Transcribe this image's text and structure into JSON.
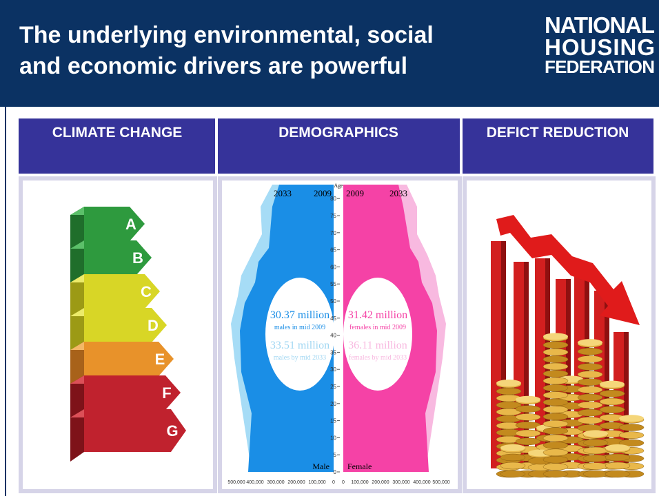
{
  "header": {
    "title": [
      "The underlying environmental, social",
      "and economic drivers are powerful"
    ],
    "logo": [
      "NATIONAL",
      "HOUSING",
      "FEDERATION"
    ]
  },
  "columns": [
    {
      "heading": "CLIMATE CHANGE",
      "labels": [
        "A",
        "B",
        "C",
        "D",
        "E",
        "F",
        "G"
      ]
    },
    {
      "heading": "DEMOGRAPHICS",
      "years": [
        "2033",
        "2009",
        "2009",
        "2033"
      ],
      "age_label": "Age",
      "age_ticks": [
        "0",
        "5",
        "10",
        "15",
        "20",
        "25",
        "30",
        "35",
        "40",
        "45",
        "50",
        "55",
        "60",
        "65",
        "70",
        "75",
        "80"
      ],
      "male": {
        "label": "Male",
        "total_2009": "30.37 million",
        "caption_2009": "males in mid 2009",
        "total_2033": "33.51 million",
        "caption_2033": "males by mid 2033"
      },
      "female": {
        "label": "Female",
        "total_2009": "31.42 million",
        "caption_2009": "females in mid 2009",
        "total_2033": "36.11 million",
        "caption_2033": "females by mid 2033"
      },
      "x_ticks": [
        "500,000",
        "400,000",
        "300,000",
        "200,000",
        "100,000",
        "0",
        "0",
        "100,000",
        "200,000",
        "300,000",
        "400,000",
        "500,000"
      ]
    },
    {
      "heading": "DEFICT REDUCTION"
    }
  ]
}
